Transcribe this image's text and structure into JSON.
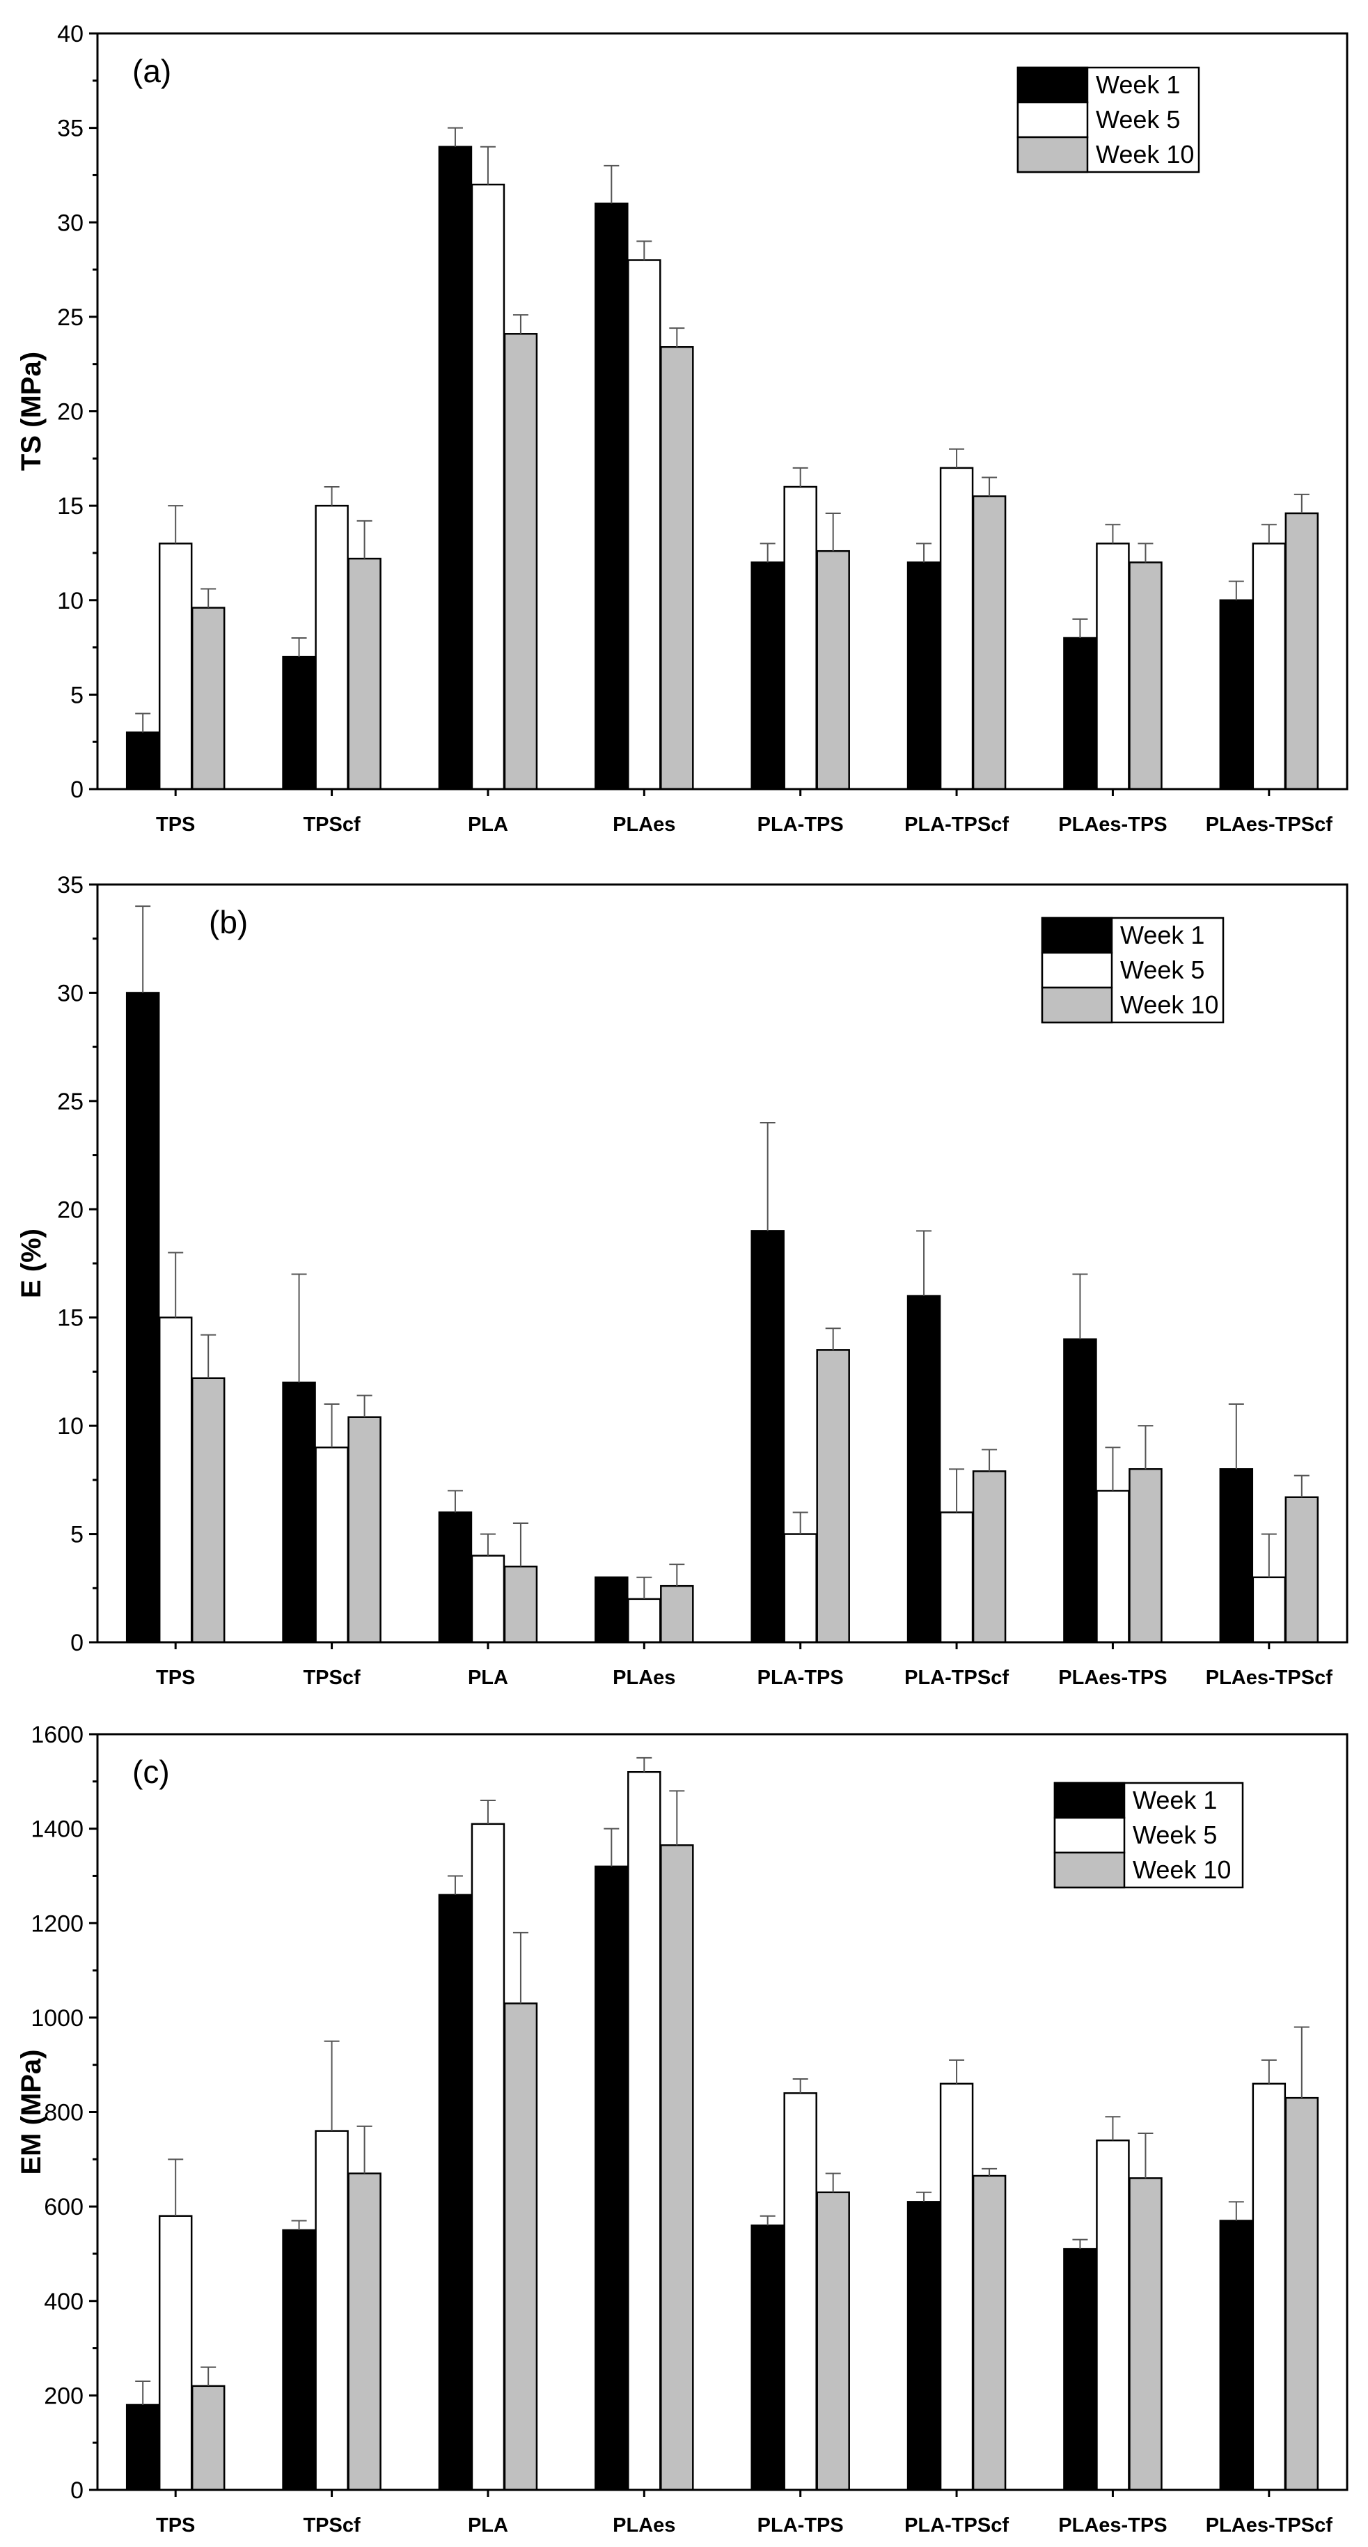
{
  "chart_data": [
    {
      "type": "bar",
      "panel_label": "(a)",
      "ylabel": "TS (MPa)",
      "xlabel": "",
      "ylim": [
        0,
        40
      ],
      "yticks": [
        "0",
        "5",
        "10",
        "15",
        "20",
        "25",
        "30",
        "35",
        "40"
      ],
      "categories": [
        "TPS",
        "TPScf",
        "PLA",
        "PLAes",
        "PLA-TPS",
        "PLA-TPScf",
        "PLAes-TPS",
        "PLAes-TPScf"
      ],
      "legend_position": "top-right",
      "series": [
        {
          "name": "Week 1",
          "color": "#000000",
          "values": [
            3,
            7,
            34,
            31,
            12,
            12,
            8,
            10
          ],
          "errors": [
            1,
            1,
            1,
            2,
            1,
            1,
            1,
            1
          ]
        },
        {
          "name": "Week 5",
          "color": "#ffffff",
          "values": [
            13,
            15,
            32,
            28,
            16,
            17,
            13,
            13
          ],
          "errors": [
            2,
            1,
            2,
            1,
            1,
            1,
            1,
            1
          ]
        },
        {
          "name": "Week 10",
          "color": "#c0c0c0",
          "values": [
            9.6,
            12.2,
            24.1,
            23.4,
            12.6,
            15.5,
            12.0,
            14.6
          ],
          "errors": [
            1.0,
            2.0,
            1.0,
            1.0,
            2.0,
            1.0,
            1.0,
            1.0
          ]
        }
      ]
    },
    {
      "type": "bar",
      "panel_label": "(b)",
      "ylabel": "E (%)",
      "xlabel": "",
      "ylim": [
        0,
        35
      ],
      "yticks": [
        "0",
        "5",
        "10",
        "15",
        "20",
        "25",
        "30",
        "35"
      ],
      "categories": [
        "TPS",
        "TPScf",
        "PLA",
        "PLAes",
        "PLA-TPS",
        "PLA-TPScf",
        "PLAes-TPS",
        "PLAes-TPScf"
      ],
      "legend_position": "top-right",
      "series": [
        {
          "name": "Week 1",
          "color": "#000000",
          "values": [
            30,
            12,
            6,
            3,
            19,
            16,
            14,
            8
          ],
          "errors": [
            4,
            5,
            1,
            0,
            5,
            3,
            3,
            3
          ]
        },
        {
          "name": "Week 5",
          "color": "#ffffff",
          "values": [
            15,
            9,
            4,
            2,
            5,
            6,
            7,
            3
          ],
          "errors": [
            3,
            2,
            1,
            1,
            1,
            2,
            2,
            2
          ]
        },
        {
          "name": "Week 10",
          "color": "#c0c0c0",
          "values": [
            12.2,
            10.4,
            3.5,
            2.6,
            13.5,
            7.9,
            8.0,
            6.7
          ],
          "errors": [
            2.0,
            1.0,
            2.0,
            1.0,
            1.0,
            1.0,
            2.0,
            1.0
          ]
        }
      ]
    },
    {
      "type": "bar",
      "panel_label": "(c)",
      "ylabel": "EM (MPa)",
      "xlabel": "",
      "ylim": [
        0,
        1600
      ],
      "yticks": [
        "0",
        "200",
        "400",
        "600",
        "800",
        "1000",
        "1200",
        "1400",
        "1600"
      ],
      "categories": [
        "TPS",
        "TPScf",
        "PLA",
        "PLAes",
        "PLA-TPS",
        "PLA-TPScf",
        "PLAes-TPS",
        "PLAes-TPScf"
      ],
      "legend_position": "top-right",
      "series": [
        {
          "name": "Week 1",
          "color": "#000000",
          "values": [
            180,
            550,
            1260,
            1320,
            560,
            610,
            510,
            570
          ],
          "errors": [
            50,
            20,
            40,
            80,
            20,
            20,
            20,
            40
          ]
        },
        {
          "name": "Week 5",
          "color": "#ffffff",
          "values": [
            580,
            760,
            1410,
            1520,
            840,
            860,
            740,
            860
          ],
          "errors": [
            120,
            190,
            50,
            30,
            30,
            50,
            50,
            50
          ]
        },
        {
          "name": "Week 10",
          "color": "#c0c0c0",
          "values": [
            220,
            670,
            1030,
            1365,
            630,
            665,
            660,
            830
          ],
          "errors": [
            40,
            100,
            150,
            115,
            40,
            15,
            95,
            150
          ]
        }
      ]
    }
  ]
}
